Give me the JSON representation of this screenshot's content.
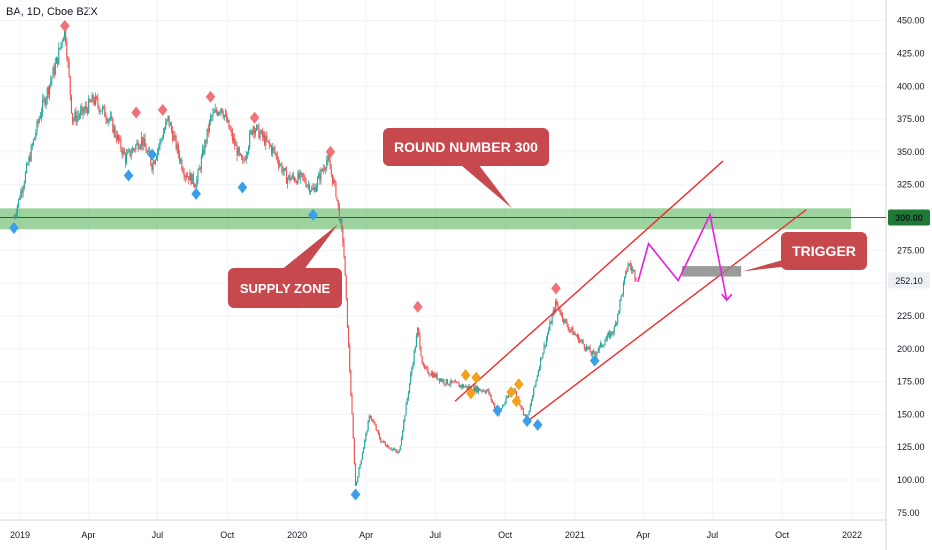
{
  "header": {
    "title": "BA, 1D, Cboe BZX"
  },
  "colors": {
    "up_candle": "#26a69a",
    "down_candle": "#ef5350",
    "zone_fill": "#4caf50",
    "channel_line": "#ef2b2b",
    "projection": "#e91ed9",
    "low_marker": "#3a9ee8",
    "high_marker": "#f07278",
    "alt_marker": "#f5a11c",
    "callout_fill": "#c7484d",
    "trigger_box": "#8a8a8a",
    "level_badge": "#1e7a34"
  },
  "chart_data": {
    "type": "candlestick",
    "symbol": "BA",
    "interval": "1D",
    "exchange": "Cboe BZX",
    "ylim": [
      70,
      460
    ],
    "y_ticks": [
      75,
      100,
      125,
      150,
      175,
      200,
      225,
      250,
      275,
      300,
      325,
      350,
      375,
      400,
      425,
      450
    ],
    "x_ticks": [
      "2019",
      "Apr",
      "Jul",
      "Oct",
      "2020",
      "Apr",
      "Jul",
      "Oct",
      "2021",
      "Apr",
      "Jul",
      "Oct",
      "2022"
    ],
    "x_tick_dates": [
      "2019-01-01",
      "2019-04-01",
      "2019-07-01",
      "2019-10-01",
      "2020-01-01",
      "2020-04-01",
      "2020-07-01",
      "2020-10-01",
      "2021-01-01",
      "2021-04-01",
      "2021-07-01",
      "2021-10-01",
      "2022-01-01"
    ],
    "price_path": [
      [
        "2018-12-24",
        300
      ],
      [
        "2019-01-07",
        330
      ],
      [
        "2019-01-28",
        380
      ],
      [
        "2019-02-19",
        420
      ],
      [
        "2019-03-01",
        446
      ],
      [
        "2019-03-11",
        375
      ],
      [
        "2019-03-25",
        380
      ],
      [
        "2019-04-08",
        390
      ],
      [
        "2019-04-29",
        375
      ],
      [
        "2019-05-20",
        345
      ],
      [
        "2019-06-10",
        360
      ],
      [
        "2019-06-24",
        340
      ],
      [
        "2019-07-15",
        375
      ],
      [
        "2019-08-05",
        335
      ],
      [
        "2019-08-21",
        326
      ],
      [
        "2019-09-09",
        375
      ],
      [
        "2019-09-23",
        385
      ],
      [
        "2019-10-08",
        360
      ],
      [
        "2019-10-21",
        340
      ],
      [
        "2019-11-04",
        370
      ],
      [
        "2019-12-02",
        350
      ],
      [
        "2019-12-18",
        330
      ],
      [
        "2020-01-09",
        330
      ],
      [
        "2020-01-22",
        320
      ],
      [
        "2020-02-10",
        345
      ],
      [
        "2020-02-21",
        320
      ],
      [
        "2020-03-02",
        280
      ],
      [
        "2020-03-18",
        95
      ],
      [
        "2020-04-06",
        150
      ],
      [
        "2020-04-20",
        130
      ],
      [
        "2020-05-14",
        120
      ],
      [
        "2020-06-08",
        215
      ],
      [
        "2020-06-15",
        185
      ],
      [
        "2020-07-13",
        175
      ],
      [
        "2020-08-17",
        170
      ],
      [
        "2020-09-08",
        168
      ],
      [
        "2020-09-21",
        150
      ],
      [
        "2020-10-12",
        170
      ],
      [
        "2020-10-30",
        145
      ],
      [
        "2020-11-16",
        190
      ],
      [
        "2020-12-07",
        235
      ],
      [
        "2020-12-21",
        218
      ],
      [
        "2021-01-25",
        195
      ],
      [
        "2021-02-22",
        215
      ],
      [
        "2021-03-12",
        265
      ],
      [
        "2021-03-23",
        255
      ]
    ],
    "events_high": [
      {
        "date": "2019-03-01",
        "price": 446
      },
      {
        "date": "2019-06-03",
        "price": 380
      },
      {
        "date": "2019-07-08",
        "price": 382
      },
      {
        "date": "2019-09-09",
        "price": 392
      },
      {
        "date": "2019-11-06",
        "price": 376
      },
      {
        "date": "2020-02-14",
        "price": 350
      },
      {
        "date": "2020-06-08",
        "price": 232
      },
      {
        "date": "2020-12-07",
        "price": 246
      }
    ],
    "events_low": [
      {
        "date": "2018-12-24",
        "price": 292
      },
      {
        "date": "2019-05-24",
        "price": 332
      },
      {
        "date": "2019-06-24",
        "price": 348
      },
      {
        "date": "2019-08-21",
        "price": 318
      },
      {
        "date": "2019-10-21",
        "price": 323
      },
      {
        "date": "2020-01-22",
        "price": 302
      },
      {
        "date": "2020-03-18",
        "price": 89
      },
      {
        "date": "2020-09-21",
        "price": 153
      },
      {
        "date": "2020-10-30",
        "price": 145
      },
      {
        "date": "2020-11-13",
        "price": 142
      },
      {
        "date": "2021-01-27",
        "price": 191
      }
    ],
    "events_alt": [
      {
        "date": "2020-08-10",
        "price": 180
      },
      {
        "date": "2020-08-17",
        "price": 166
      },
      {
        "date": "2020-08-24",
        "price": 178
      },
      {
        "date": "2020-10-09",
        "price": 167
      },
      {
        "date": "2020-10-16",
        "price": 160
      },
      {
        "date": "2020-10-19",
        "price": 173
      }
    ],
    "zone": {
      "top": 307,
      "bottom": 291
    },
    "level_line": 300,
    "current_price": 252.1,
    "channel_upper": [
      [
        "2020-07-27",
        160
      ],
      [
        "2021-07-15",
        343
      ]
    ],
    "channel_lower": [
      [
        "2020-10-31",
        145
      ],
      [
        "2021-11-02",
        306
      ]
    ],
    "projection": [
      [
        "2021-03-25",
        251
      ],
      [
        "2021-04-08",
        280
      ],
      [
        "2021-05-17",
        252
      ],
      [
        "2021-06-28",
        302
      ],
      [
        "2021-07-20",
        237
      ]
    ],
    "trigger_box": {
      "start": "2021-05-22",
      "end": "2021-08-08",
      "top": 263,
      "bottom": 255
    },
    "annotations": {
      "round_number": "ROUND NUMBER 300",
      "supply_zone": "SUPPLY ZONE",
      "trigger": "TRIGGER"
    },
    "price_labels": {
      "level": "300.00",
      "current": "252.10"
    }
  }
}
